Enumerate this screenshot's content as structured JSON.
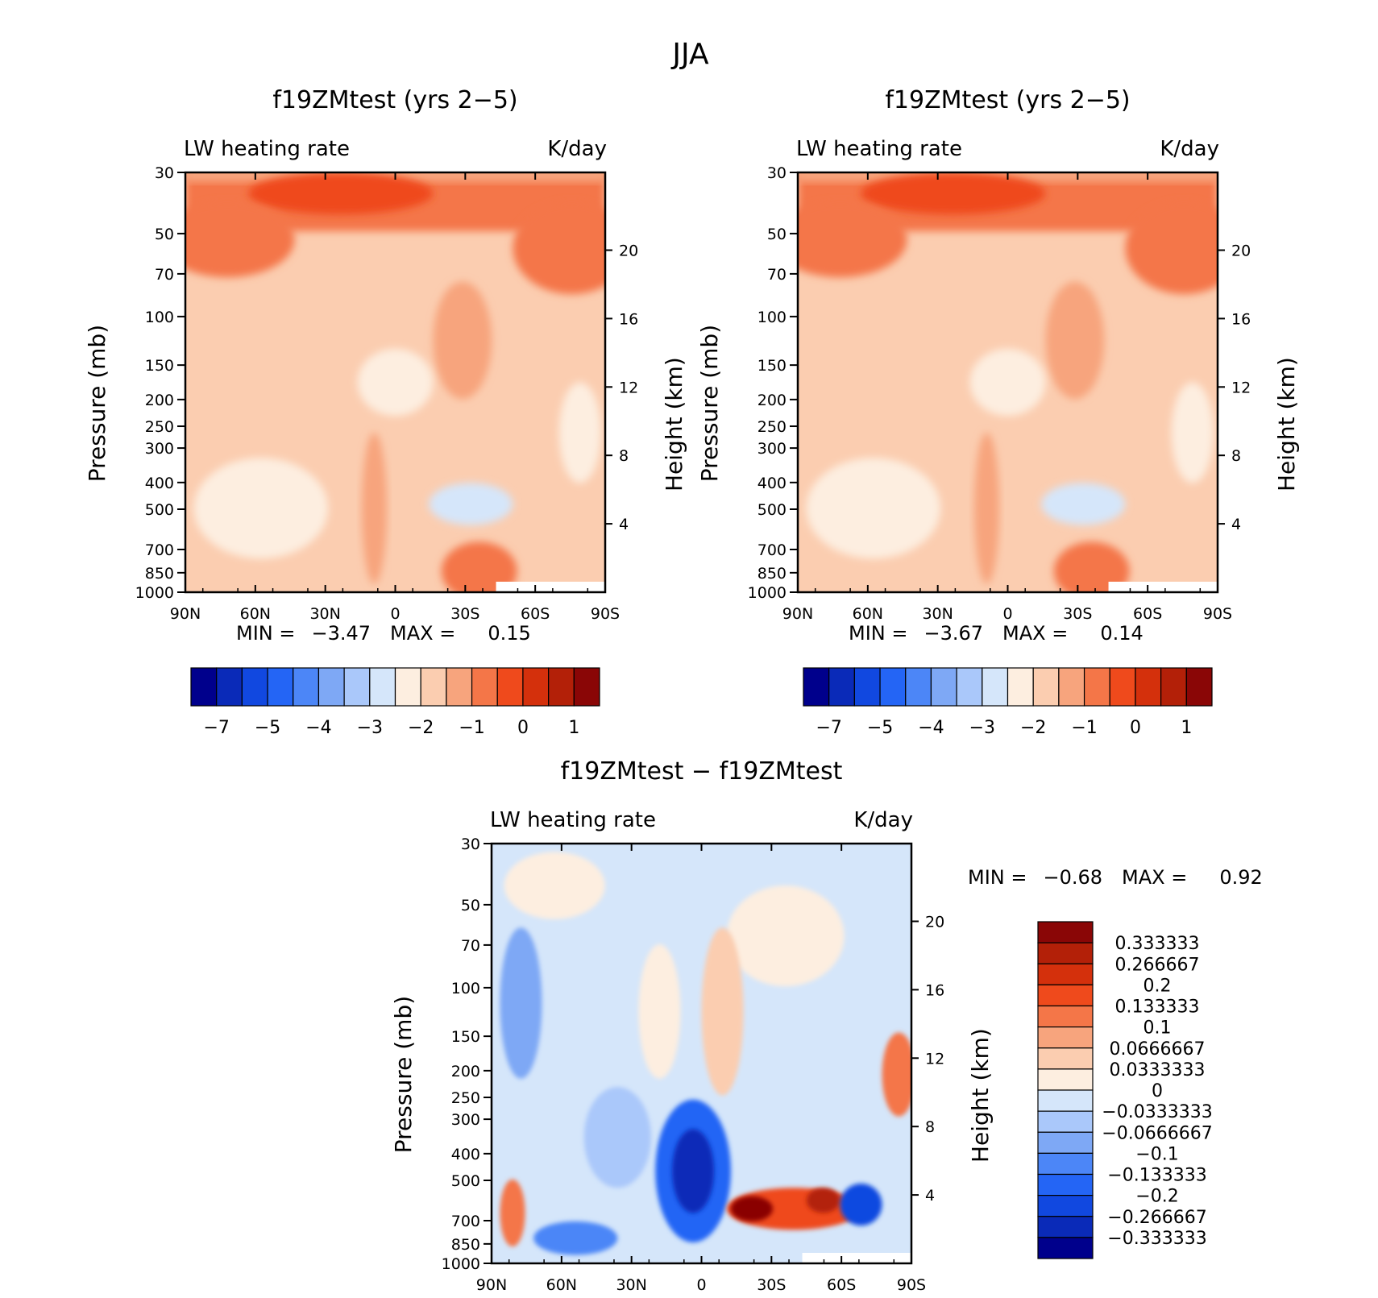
{
  "figure": {
    "title": "JJA"
  },
  "chart_data": [
    {
      "type": "heatmap",
      "title": "f19ZMtest (yrs 2-5)",
      "left_label": "LW heating rate",
      "right_label": "K/day",
      "ylabel": "Pressure (mb)",
      "ylabel_right": "Height (km)",
      "x_ticks": [
        "90N",
        "60N",
        "30N",
        "0",
        "30S",
        "60S",
        "90S"
      ],
      "y_ticks": [
        30,
        50,
        70,
        100,
        150,
        200,
        250,
        300,
        400,
        500,
        700,
        850,
        1000
      ],
      "y_ticks_right": [
        20,
        16,
        12,
        8,
        4
      ],
      "min_label": "MIN =",
      "min_value": "-3.47",
      "max_label": "MAX =",
      "max_value": "0.15",
      "colorbar_labels": [
        "-7",
        "-5",
        "-4",
        "-3",
        "-2",
        "-1",
        "0",
        "1"
      ],
      "colors": [
        "#00008c",
        "#0a2ab8",
        "#1148e0",
        "#2465f5",
        "#4c86f7",
        "#7ea8f5",
        "#aac8fa",
        "#d5e6fa",
        "#fdeee0",
        "#fbcdb0",
        "#f7a47d",
        "#f47648",
        "#ef4a1c",
        "#d4300c",
        "#b32008",
        "#8a0606"
      ]
    },
    {
      "type": "heatmap",
      "title": "f19ZMtest (yrs 2-5)",
      "left_label": "LW heating rate",
      "right_label": "K/day",
      "ylabel": "Pressure (mb)",
      "ylabel_right": "Height (km)",
      "x_ticks": [
        "90N",
        "60N",
        "30N",
        "0",
        "30S",
        "60S",
        "90S"
      ],
      "y_ticks": [
        30,
        50,
        70,
        100,
        150,
        200,
        250,
        300,
        400,
        500,
        700,
        850,
        1000
      ],
      "y_ticks_right": [
        20,
        16,
        12,
        8,
        4
      ],
      "min_label": "MIN =",
      "min_value": "-3.67",
      "max_label": "MAX =",
      "max_value": "0.14",
      "colorbar_labels": [
        "-7",
        "-5",
        "-4",
        "-3",
        "-2",
        "-1",
        "0",
        "1"
      ],
      "colors": [
        "#00008c",
        "#0a2ab8",
        "#1148e0",
        "#2465f5",
        "#4c86f7",
        "#7ea8f5",
        "#aac8fa",
        "#d5e6fa",
        "#fdeee0",
        "#fbcdb0",
        "#f7a47d",
        "#f47648",
        "#ef4a1c",
        "#d4300c",
        "#b32008",
        "#8a0606"
      ]
    },
    {
      "type": "heatmap",
      "title": "f19ZMtest - f19ZMtest",
      "left_label": "LW heating rate",
      "right_label": "K/day",
      "ylabel": "Pressure (mb)",
      "ylabel_right": "Height (km)",
      "x_ticks": [
        "90N",
        "60N",
        "30N",
        "0",
        "30S",
        "60S",
        "90S"
      ],
      "y_ticks": [
        30,
        50,
        70,
        100,
        150,
        200,
        250,
        300,
        400,
        500,
        700,
        850,
        1000
      ],
      "y_ticks_right": [
        20,
        16,
        12,
        8,
        4
      ],
      "min_label": "MIN =",
      "min_value": "-0.68",
      "max_label": "MAX =",
      "max_value": "0.92",
      "colorbar_labels": [
        "0.333333",
        "0.266667",
        "0.2",
        "0.133333",
        "0.1",
        "0.0666667",
        "0.0333333",
        "0",
        "-0.0333333",
        "-0.0666667",
        "-0.1",
        "-0.133333",
        "-0.2",
        "-0.266667",
        "-0.333333"
      ],
      "colors": [
        "#8a0606",
        "#b32008",
        "#d4300c",
        "#ef4a1c",
        "#f47648",
        "#f7a47d",
        "#fbcdb0",
        "#fdeee0",
        "#d5e6fa",
        "#aac8fa",
        "#7ea8f5",
        "#4c86f7",
        "#2465f5",
        "#1148e0",
        "#0a2ab8",
        "#00008c"
      ]
    }
  ]
}
